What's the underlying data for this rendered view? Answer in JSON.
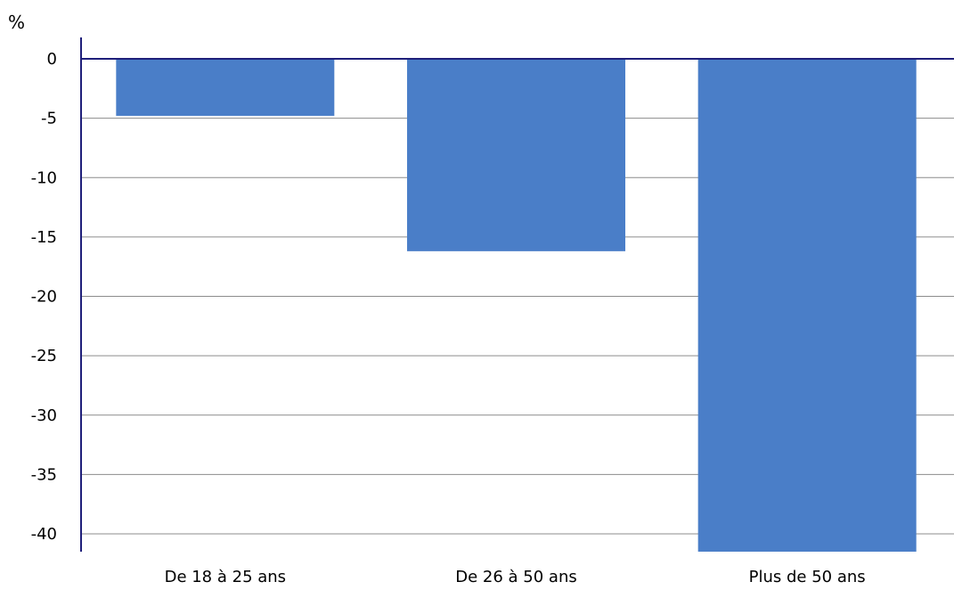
{
  "chart_data": {
    "type": "bar",
    "unit_label": "%",
    "categories": [
      "De 18 à 25 ans",
      "De 26 à 50 ans",
      "Plus de 50 ans"
    ],
    "values": [
      -4.8,
      -16.2,
      -41.5
    ],
    "ylim": [
      -41.5,
      0
    ],
    "yticks": [
      0,
      -5,
      -10,
      -15,
      -20,
      -25,
      -30,
      -35,
      -40
    ],
    "grid": true,
    "bar_color": "#4a7ec8",
    "axis_color": "#1f1f7a",
    "grid_color": "#8c8c8c"
  }
}
